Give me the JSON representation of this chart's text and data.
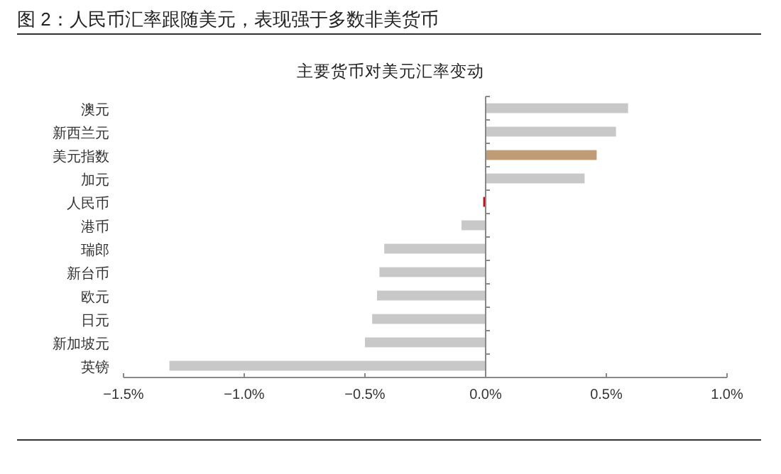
{
  "chart_data": {
    "type": "bar",
    "orientation": "horizontal",
    "title": "图 2：人民币汇率跟随美元，表现强于多数非美货币",
    "subtitle": "主要货币对美元汇率变动",
    "categories": [
      "澳元",
      "新西兰元",
      "美元指数",
      "加元",
      "人民币",
      "港币",
      "瑞郎",
      "新台币",
      "欧元",
      "日元",
      "新加坡元",
      "英镑"
    ],
    "values": [
      0.59,
      0.54,
      0.46,
      0.41,
      -0.01,
      -0.1,
      -0.42,
      -0.44,
      -0.45,
      -0.47,
      -0.5,
      -1.31
    ],
    "colors": [
      "#c8c8c8",
      "#c8c8c8",
      "#bf9b76",
      "#c8c8c8",
      "#b5121b",
      "#c8c8c8",
      "#c8c8c8",
      "#c8c8c8",
      "#c8c8c8",
      "#c8c8c8",
      "#c8c8c8",
      "#c8c8c8"
    ],
    "xlim": [
      -1.5,
      1.0
    ],
    "xticks": [
      {
        "value": -1.5,
        "label": "−1.5%"
      },
      {
        "value": -1.0,
        "label": "−1.0%"
      },
      {
        "value": -0.5,
        "label": "−0.5%"
      },
      {
        "value": 0,
        "label": "0.0%"
      },
      {
        "value": 0.5,
        "label": "0.5%"
      },
      {
        "value": 1.0,
        "label": "1.0%"
      }
    ]
  }
}
